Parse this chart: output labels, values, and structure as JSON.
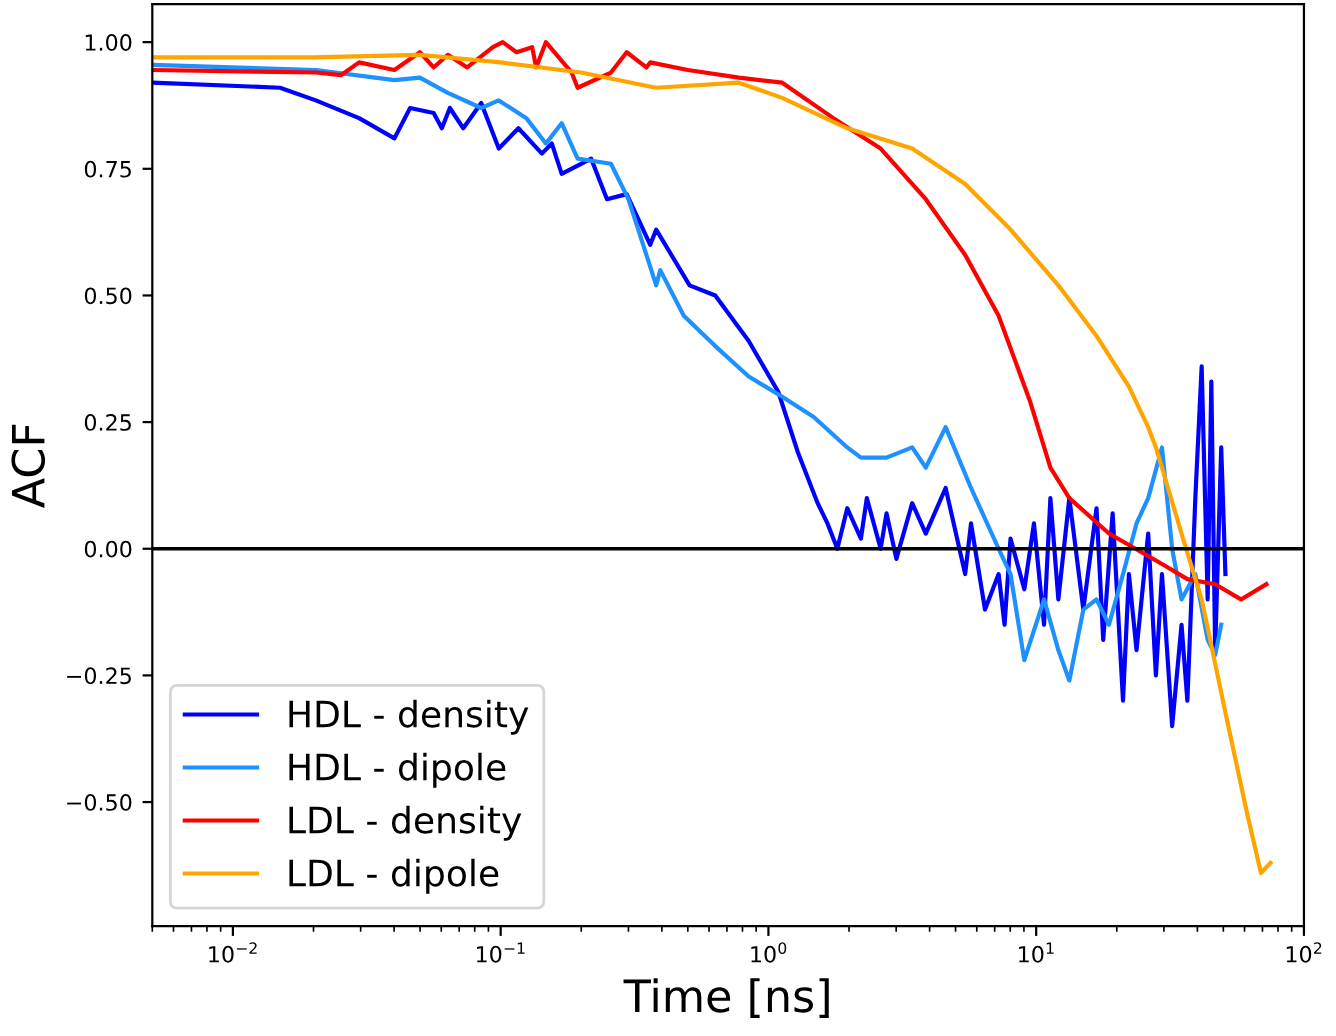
{
  "chart_data": {
    "type": "line",
    "xlabel": "Time [ns]",
    "ylabel": "ACF",
    "log": "x",
    "xlim": [
      0.005,
      100
    ],
    "ylim": [
      -0.745,
      1.075
    ],
    "xticks": [
      {
        "value": 0.01,
        "label": "10$^{−2}$"
      },
      {
        "value": 0.1,
        "label": "10$^{−1}$"
      },
      {
        "value": 1,
        "label": "10$^{0}$"
      },
      {
        "value": 10,
        "label": "10$^{1}$"
      },
      {
        "value": 100,
        "label": "10$^{2}$"
      }
    ],
    "yticks": [
      {
        "value": -0.5,
        "label": "−0.50"
      },
      {
        "value": -0.25,
        "label": "−0.25"
      },
      {
        "value": 0,
        "label": "0.00"
      },
      {
        "value": 0.25,
        "label": "0.25"
      },
      {
        "value": 0.5,
        "label": "0.50"
      },
      {
        "value": 0.75,
        "label": "0.75"
      },
      {
        "value": 1,
        "label": "1.00"
      }
    ],
    "grid": false,
    "legend": "bottom left",
    "marker": "none",
    "line_style": "solid",
    "ref_lines": [
      {
        "axis": "y",
        "value": 0,
        "color": "#000000"
      }
    ],
    "series": [
      {
        "name": "HDL - density",
        "color": "#0000ff",
        "x": [
          0.005,
          0.015,
          0.0204,
          0.0296,
          0.0401,
          0.0459,
          0.0562,
          0.0603,
          0.0646,
          0.0725,
          0.0846,
          0.0984,
          0.1165,
          0.1426,
          0.1552,
          0.169,
          0.2178,
          0.2495,
          0.2956,
          0.3619,
          0.381,
          0.5076,
          0.633,
          0.844,
          1.088,
          1.289,
          1.527,
          1.662,
          1.809,
          1.97,
          2.215,
          2.331,
          2.625,
          2.761,
          3.005,
          3.443,
          3.87,
          4.59,
          5.43,
          5.71,
          6.44,
          7.24,
          7.62,
          8.02,
          9.03,
          9.81,
          10.7,
          11.3,
          12.1,
          13.3,
          15.0,
          16.8,
          17.8,
          19.3,
          21.1,
          22.2,
          23.7,
          26.2,
          28.0,
          29.5,
          32.2,
          34.9,
          36.7,
          39.3,
          41.5,
          43.7,
          45.1,
          46.6,
          49.1,
          50.9
        ],
        "values": [
          0.92,
          0.91,
          0.885,
          0.85,
          0.81,
          0.87,
          0.86,
          0.83,
          0.87,
          0.83,
          0.88,
          0.79,
          0.83,
          0.78,
          0.8,
          0.74,
          0.77,
          0.69,
          0.7,
          0.6,
          0.63,
          0.52,
          0.5,
          0.41,
          0.31,
          0.19,
          0.09,
          0.05,
          0.0,
          0.08,
          0.02,
          0.1,
          0.0,
          0.07,
          -0.02,
          0.09,
          0.03,
          0.12,
          -0.05,
          0.05,
          -0.12,
          -0.05,
          -0.15,
          0.02,
          -0.08,
          0.05,
          -0.15,
          0.1,
          -0.1,
          0.1,
          -0.12,
          0.08,
          -0.18,
          0.07,
          -0.3,
          -0.05,
          -0.2,
          0.03,
          -0.25,
          -0.05,
          -0.35,
          -0.15,
          -0.3,
          0.1,
          0.36,
          -0.1,
          0.33,
          -0.2,
          0.2,
          -0.05
        ]
      },
      {
        "name": "HDL - dipole",
        "color": "#1e90ff",
        "x": [
          0.005,
          0.0204,
          0.0401,
          0.0499,
          0.0635,
          0.0846,
          0.0984,
          0.1247,
          0.1475,
          0.169,
          0.1938,
          0.2582,
          0.3,
          0.381,
          0.3944,
          0.4829,
          0.633,
          0.844,
          1.126,
          1.476,
          1.97,
          2.215,
          2.761,
          3.443,
          3.87,
          4.59,
          5.71,
          7.24,
          8.02,
          9.03,
          10.7,
          12.1,
          13.3,
          15.0,
          16.8,
          18.7,
          21.1,
          23.7,
          26.2,
          29.5,
          32.2,
          34.9,
          39.3,
          43.7,
          46.6,
          49.1
        ],
        "values": [
          0.955,
          0.945,
          0.925,
          0.93,
          0.9,
          0.87,
          0.885,
          0.85,
          0.8,
          0.84,
          0.77,
          0.76,
          0.69,
          0.52,
          0.55,
          0.46,
          0.4,
          0.34,
          0.3,
          0.26,
          0.2,
          0.18,
          0.18,
          0.2,
          0.16,
          0.24,
          0.12,
          0.0,
          -0.05,
          -0.22,
          -0.1,
          -0.2,
          -0.26,
          -0.12,
          -0.1,
          -0.15,
          -0.05,
          0.05,
          0.1,
          0.2,
          0.0,
          -0.1,
          -0.05,
          -0.18,
          -0.21,
          -0.15
        ]
      },
      {
        "name": "LDL - density",
        "color": "#ff0000",
        "x": [
          0.005,
          0.0204,
          0.0254,
          0.0296,
          0.0401,
          0.0499,
          0.0562,
          0.0635,
          0.075,
          0.0935,
          0.1018,
          0.1146,
          0.1311,
          0.1357,
          0.1475,
          0.1842,
          0.1938,
          0.2582,
          0.2956,
          0.35,
          0.3619,
          0.5,
          0.776,
          1.126,
          1.748,
          2.625,
          3.87,
          5.43,
          7.24,
          9.5,
          11.3,
          13.3,
          18.7,
          29.5,
          36.7,
          46.6,
          58.2,
          72.4
        ],
        "values": [
          0.945,
          0.94,
          0.935,
          0.96,
          0.945,
          0.98,
          0.95,
          0.975,
          0.95,
          0.99,
          1.0,
          0.98,
          0.99,
          0.95,
          1.0,
          0.94,
          0.91,
          0.94,
          0.98,
          0.95,
          0.96,
          0.945,
          0.93,
          0.92,
          0.85,
          0.79,
          0.69,
          0.58,
          0.46,
          0.29,
          0.16,
          0.1,
          0.03,
          -0.03,
          -0.06,
          -0.07,
          -0.1,
          -0.07
        ]
      },
      {
        "name": "LDL - dipole",
        "color": "#ffa500",
        "x": [
          0.005,
          0.02,
          0.0499,
          0.1,
          0.2,
          0.38,
          0.776,
          1.126,
          1.97,
          3.443,
          5.43,
          8.02,
          12.1,
          16.8,
          22.2,
          26.2,
          28.0,
          34.9,
          41.5,
          51.7,
          61.2,
          69.1,
          75.0
        ],
        "values": [
          0.97,
          0.97,
          0.975,
          0.96,
          0.94,
          0.91,
          0.92,
          0.89,
          0.83,
          0.79,
          0.72,
          0.63,
          0.52,
          0.42,
          0.32,
          0.24,
          0.2,
          0.03,
          -0.1,
          -0.34,
          -0.52,
          -0.64,
          -0.62
        ]
      }
    ]
  }
}
